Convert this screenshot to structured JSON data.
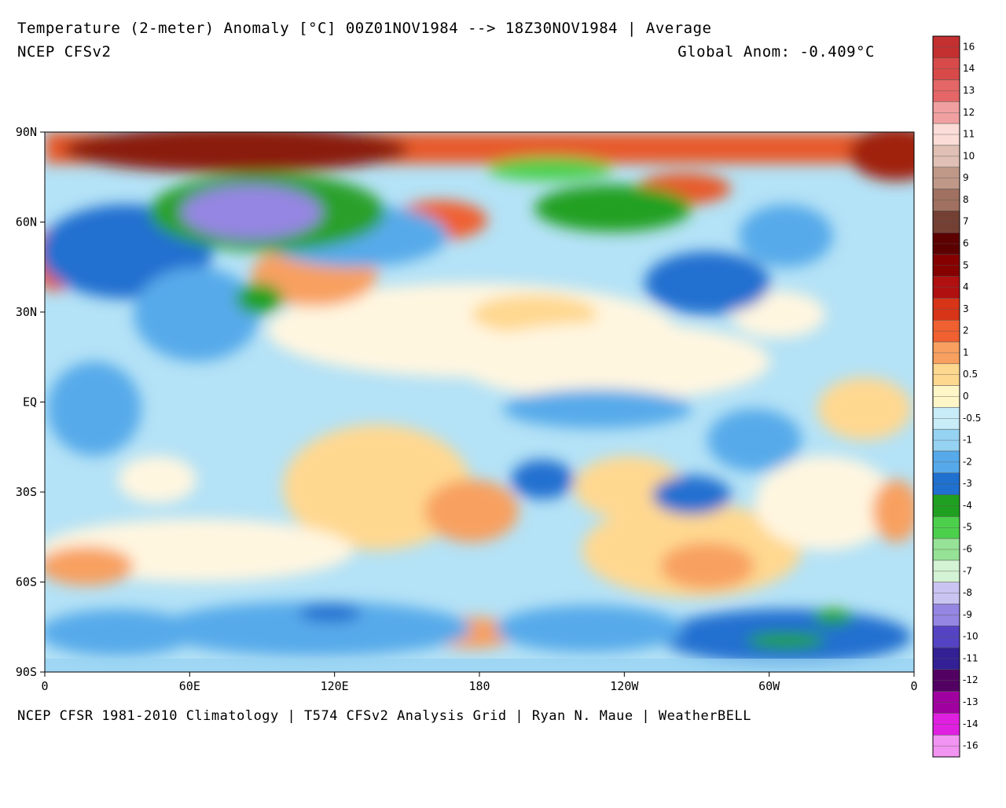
{
  "header": {
    "title": "Temperature (2-meter) Anomaly  [°C] 00Z01NOV1984 --> 18Z30NOV1984 | Average",
    "model": "NCEP CFSv2",
    "global_anomaly": "Global Anom: -0.409°C"
  },
  "map": {
    "lat_labels": [
      "90N",
      "60N",
      "30N",
      "EQ",
      "30S",
      "60S",
      "90S"
    ],
    "lon_labels": [
      "0",
      "60E",
      "120E",
      "180",
      "120W",
      "60W",
      "0"
    ]
  },
  "colorbar": {
    "labels": [
      "16",
      "14",
      "13",
      "12",
      "11",
      "10",
      "9",
      "8",
      "7",
      "6",
      "5",
      "4",
      "3",
      "2",
      "1",
      "0.5",
      "0",
      "-0.5",
      "-1",
      "-2",
      "-3",
      "-4",
      "-5",
      "-6",
      "-7",
      "-8",
      "-9",
      "-10",
      "-11",
      "-12",
      "-13",
      "-14",
      "-16"
    ],
    "colors": [
      "#c43030",
      "#d84a4a",
      "#e46666",
      "#f0a0a0",
      "#fbdcd6",
      "#e0c0b4",
      "#c09888",
      "#a07060",
      "#744034",
      "#5c0000",
      "#860000",
      "#b01010",
      "#d83418",
      "#f06030",
      "#f8a060",
      "#ffd890",
      "#fff6c8",
      "#c8ecf8",
      "#96d2f2",
      "#56aaea",
      "#2070d0",
      "#20a020",
      "#4cd04c",
      "#96e296",
      "#d4f2d4",
      "#cac4f2",
      "#9486e2",
      "#5444c4",
      "#322094",
      "#520062",
      "#a000a0",
      "#e020e0",
      "#f294f2"
    ]
  },
  "footer": "NCEP CFSR 1981-2010 Climatology | T574 CFSv2 Analysis Grid | Ryan N. Maue | WeatherBELL"
}
